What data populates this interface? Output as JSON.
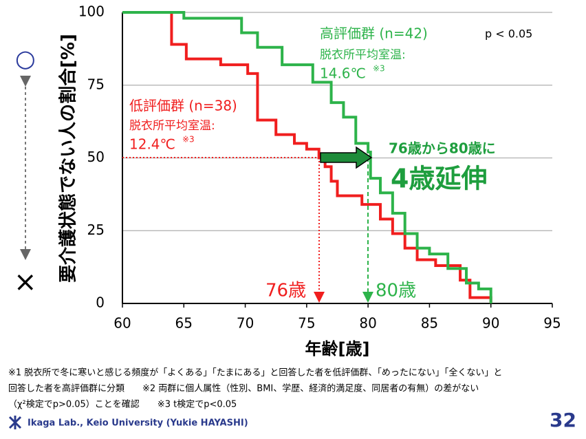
{
  "chart_data": {
    "type": "line",
    "step": "post",
    "xlabel": "年齢[歳]",
    "ylabel": "要介護状態でない人の割合[%]",
    "xlim": [
      60,
      95
    ],
    "xticks": [
      60,
      65,
      70,
      75,
      80,
      85,
      90,
      95
    ],
    "ylim": [
      0,
      100
    ],
    "yticks": [
      0,
      25,
      50,
      75,
      100
    ],
    "grid": true,
    "series": [
      {
        "name": "低評価群 (n=38)",
        "color": "#f01e1e",
        "x": [
          60,
          64,
          65.2,
          68,
          70.2,
          71,
          72.5,
          74,
          75,
          76,
          76.5,
          77,
          77.5,
          79.5,
          81,
          82,
          83,
          84,
          85.5,
          87.5,
          88.3,
          90
        ],
        "values": [
          100,
          89,
          84,
          82,
          79,
          63,
          58,
          55,
          53,
          50,
          47,
          42,
          37,
          34,
          29,
          24,
          19,
          15,
          13,
          8,
          2,
          0
        ]
      },
      {
        "name": "高評価群 (n=42)",
        "color": "#2db34a",
        "x": [
          60,
          65,
          69.7,
          71,
          73,
          75.5,
          77,
          78,
          79,
          80,
          80.2,
          81,
          82,
          83,
          84,
          85,
          86.5,
          88,
          89,
          90
        ],
        "values": [
          100,
          98,
          93,
          88,
          82,
          76,
          69,
          64,
          55,
          52,
          43,
          38,
          31,
          24,
          19,
          17,
          12,
          7,
          5,
          0
        ]
      }
    ],
    "annotations": [
      "p < 0.05",
      "脱衣所平均室温:",
      "14.6℃",
      "※3",
      "脱衣所平均室温:",
      "12.4℃",
      "※3",
      "76歳から80歳に",
      "4歳延伸",
      "76歳",
      "80歳",
      "○",
      "×"
    ]
  },
  "footnotes": [
    "※1  脱衣所で冬に寒いと感じる頻度が「よくある」「たまにある」と回答した者を低評価群、「めったにない」「全くない」と",
    "回答した者を高評価群に分類　　※2  両群に個人属性（性別、BMI、学歴、経済的満足度、同居者の有無）の差がない",
    "（χ²検定でp>0.05）ことを確認　　※3  t検定でp<0.05"
  ],
  "footer": {
    "lab": "Ikaga Lab., Keio University  (Yukie HAYASHI)",
    "page": "32"
  }
}
